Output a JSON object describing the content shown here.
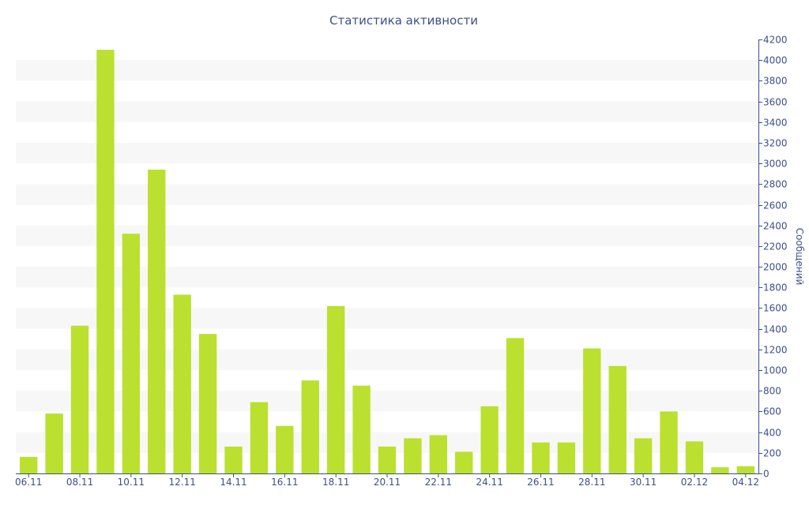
{
  "chart_data": {
    "type": "bar",
    "title": "Статистика активности",
    "ylabel": "Сообщений",
    "xlabel": "",
    "ylim": [
      0,
      4200
    ],
    "ytick_step": 200,
    "y_axis_side": "right",
    "grid": "alternating horizontal bands",
    "bar_color": "#bbe02f",
    "band_color": "#f7f7f7",
    "axis_color": "#3d4f8a",
    "x_tick_labels": [
      "06.11",
      "08.11",
      "10.11",
      "12.11",
      "14.11",
      "16.11",
      "18.11",
      "20.11",
      "22.11",
      "24.11",
      "26.11",
      "28.11",
      "30.11",
      "02.12",
      "04.12"
    ],
    "categories": [
      "06.11",
      "07.11",
      "08.11",
      "09.11",
      "10.11",
      "11.11",
      "12.11",
      "13.11",
      "14.11",
      "15.11",
      "16.11",
      "17.11",
      "18.11",
      "19.11",
      "20.11",
      "21.11",
      "22.11",
      "23.11",
      "24.11",
      "25.11",
      "26.11",
      "27.11",
      "28.11",
      "29.11",
      "30.11",
      "01.12",
      "02.12",
      "03.12",
      "04.12"
    ],
    "values": [
      160,
      580,
      1430,
      4100,
      2320,
      2940,
      1730,
      1350,
      260,
      690,
      460,
      900,
      1620,
      850,
      260,
      340,
      370,
      210,
      650,
      1310,
      300,
      300,
      1210,
      1040,
      340,
      600,
      310,
      60,
      70
    ]
  }
}
